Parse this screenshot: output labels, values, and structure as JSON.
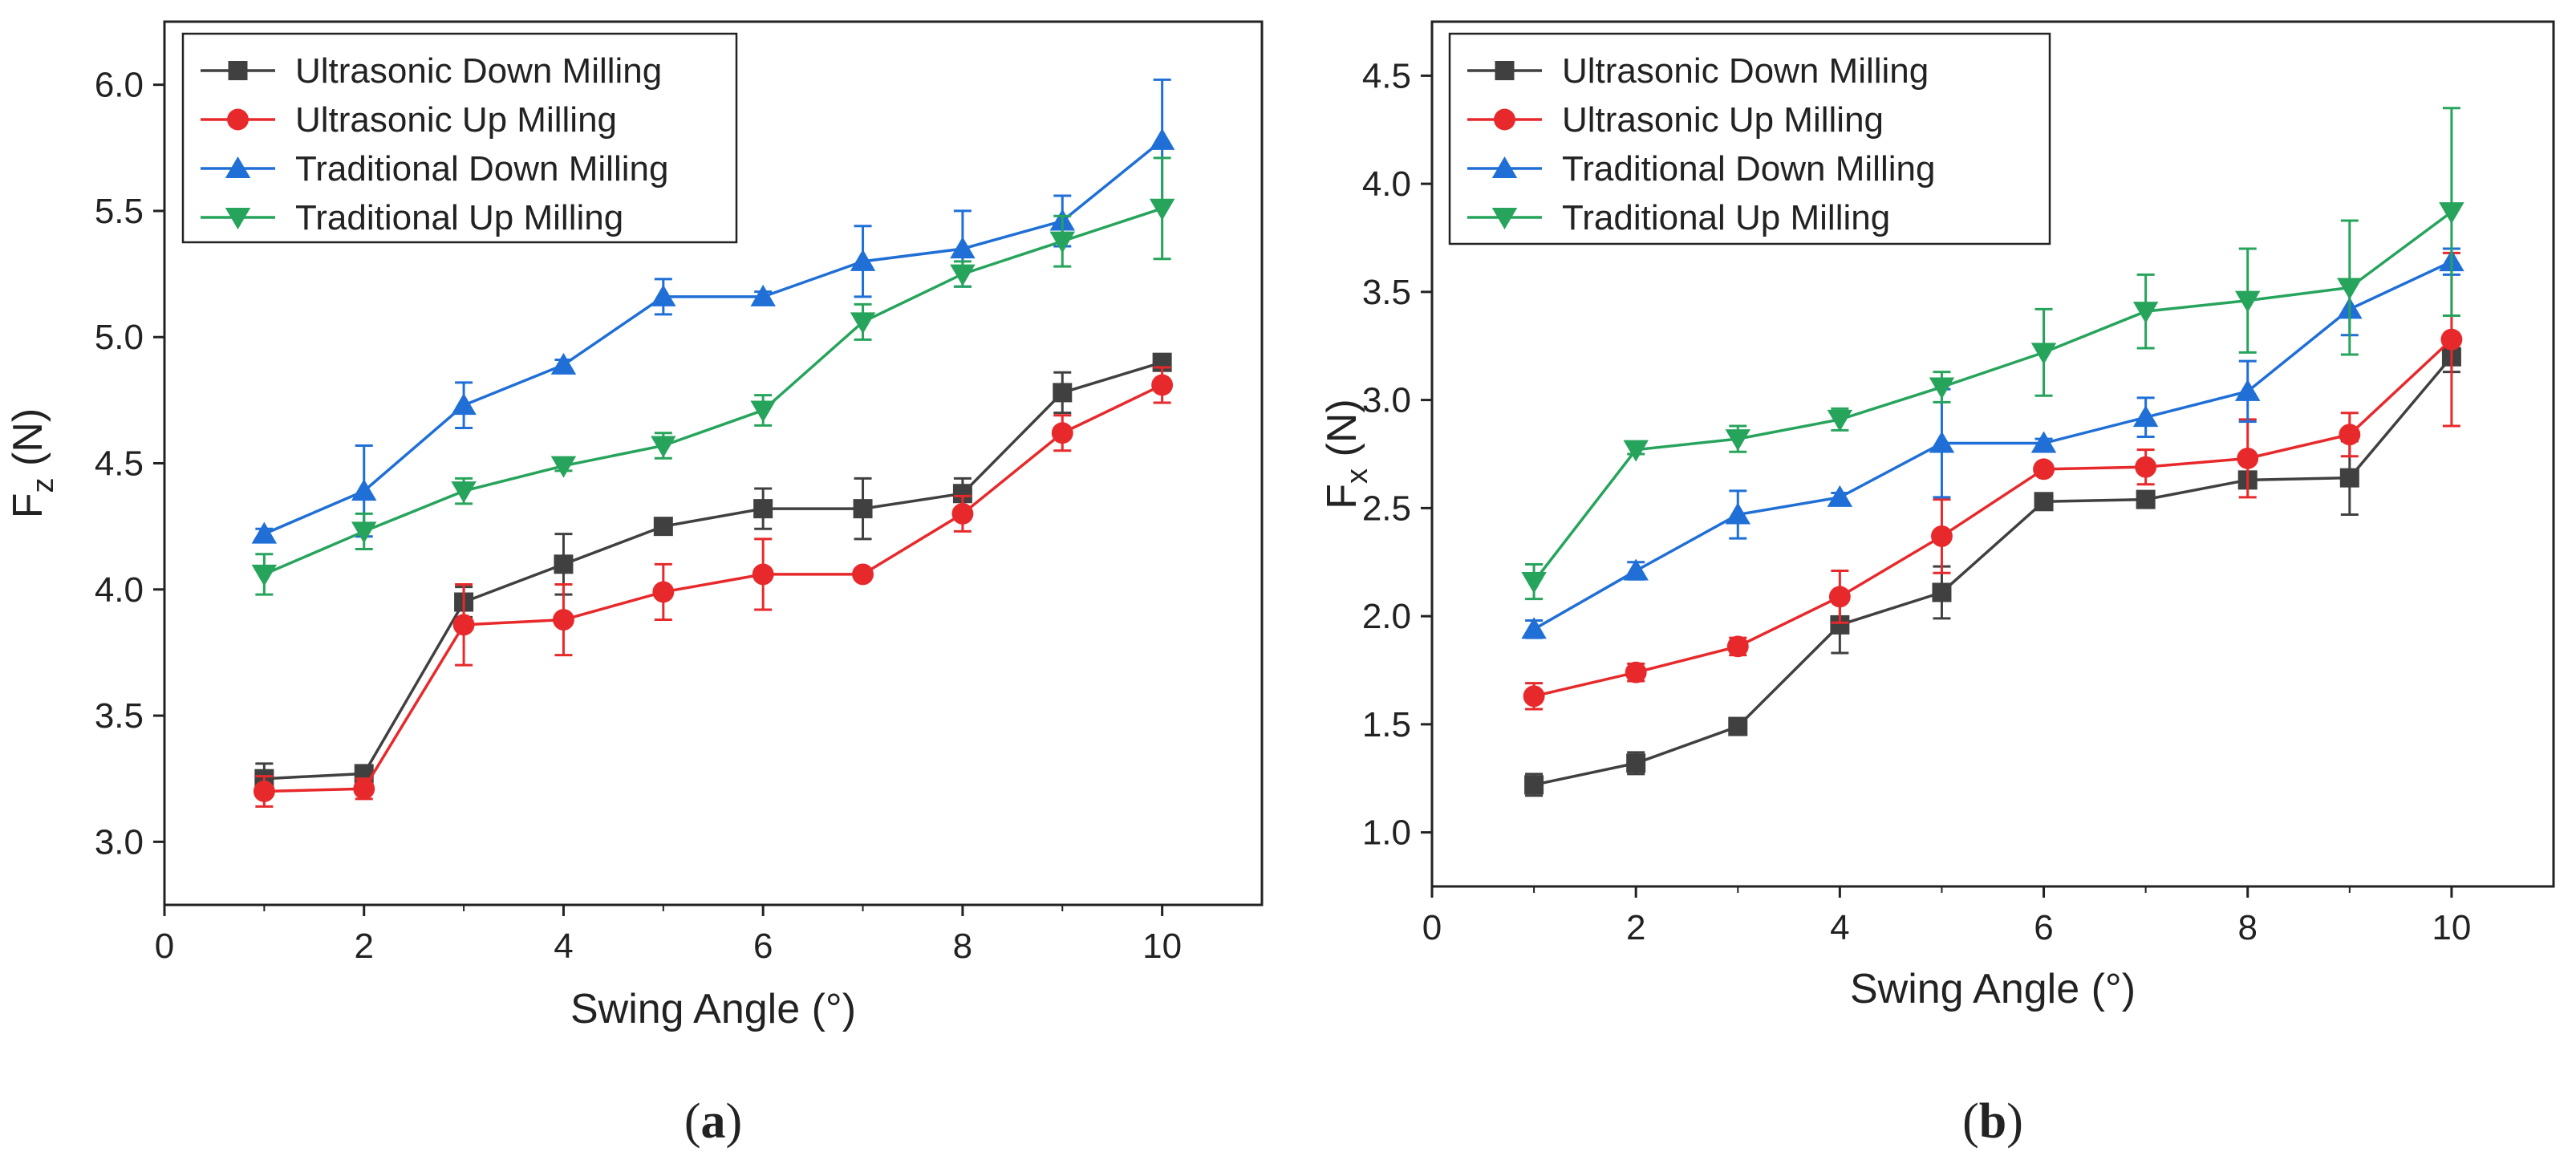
{
  "chart_data": [
    {
      "type": "line",
      "panel_label": "(a)",
      "panel_label_letter": "a",
      "xlabel": "Swing Angle (°)",
      "ylabel_main": "F",
      "ylabel_sub": "z",
      "ylabel_unit": "(N)",
      "xlim": [
        0,
        11
      ],
      "ylim": [
        2.75,
        6.25
      ],
      "xticks": [
        0,
        2,
        4,
        6,
        8,
        10
      ],
      "yticks": [
        3.0,
        3.5,
        4.0,
        4.5,
        5.0,
        5.5,
        6.0
      ],
      "grid": false,
      "legend_position": "top-left",
      "x": [
        1,
        2,
        3,
        4,
        5,
        6,
        7,
        8,
        9,
        10
      ],
      "series": [
        {
          "name": "Ultrasonic Down Milling",
          "color": "#404040",
          "marker": "square",
          "values": [
            3.25,
            3.27,
            3.95,
            4.1,
            4.25,
            4.32,
            4.32,
            4.38,
            4.78,
            4.9
          ],
          "errors": [
            0.06,
            0.02,
            0.06,
            0.12,
            0.02,
            0.08,
            0.12,
            0.06,
            0.08,
            0.02
          ]
        },
        {
          "name": "Ultrasonic Up Milling",
          "color": "#e8292b",
          "marker": "circle",
          "values": [
            3.2,
            3.21,
            3.86,
            3.88,
            3.99,
            4.06,
            4.06,
            4.3,
            4.62,
            4.81
          ],
          "errors": [
            0.06,
            0.04,
            0.16,
            0.14,
            0.11,
            0.14,
            0.02,
            0.07,
            0.07,
            0.07
          ]
        },
        {
          "name": "Traditional Down Milling",
          "color": "#1f6fd6",
          "marker": "triangle-up",
          "values": [
            4.22,
            4.39,
            4.73,
            4.89,
            5.16,
            5.16,
            5.3,
            5.35,
            5.46,
            5.78
          ],
          "errors": [
            0.02,
            0.18,
            0.09,
            0.02,
            0.07,
            0.02,
            0.14,
            0.15,
            0.1,
            0.24
          ]
        },
        {
          "name": "Traditional Up Milling",
          "color": "#27a45c",
          "marker": "triangle-down",
          "values": [
            4.06,
            4.23,
            4.39,
            4.49,
            4.57,
            4.71,
            5.06,
            5.25,
            5.38,
            5.51
          ],
          "errors": [
            0.08,
            0.07,
            0.05,
            0.02,
            0.05,
            0.06,
            0.07,
            0.05,
            0.1,
            0.2
          ]
        }
      ]
    },
    {
      "type": "line",
      "panel_label": "(b)",
      "panel_label_letter": "b",
      "xlabel": "Swing Angle (°)",
      "ylabel_main": "F",
      "ylabel_sub": "x",
      "ylabel_unit": "(N)",
      "xlim": [
        0,
        11
      ],
      "ylim": [
        0.75,
        4.75
      ],
      "xticks": [
        0,
        2,
        4,
        6,
        8,
        10
      ],
      "yticks": [
        1.0,
        1.5,
        2.0,
        2.5,
        3.0,
        3.5,
        4.0,
        4.5
      ],
      "grid": false,
      "legend_position": "top-left",
      "x": [
        1,
        2,
        3,
        4,
        5,
        6,
        7,
        8,
        9,
        10
      ],
      "series": [
        {
          "name": "Ultrasonic Down Milling",
          "color": "#404040",
          "marker": "square",
          "values": [
            1.22,
            1.32,
            1.49,
            1.96,
            2.11,
            2.53,
            2.54,
            2.63,
            2.64,
            3.2
          ],
          "errors": [
            0.05,
            0.05,
            0.02,
            0.13,
            0.12,
            0.02,
            0.02,
            0.02,
            0.17,
            0.07
          ]
        },
        {
          "name": "Ultrasonic Up Milling",
          "color": "#e8292b",
          "marker": "circle",
          "values": [
            1.63,
            1.74,
            1.86,
            2.09,
            2.37,
            2.68,
            2.69,
            2.73,
            2.84,
            3.28
          ],
          "errors": [
            0.06,
            0.04,
            0.04,
            0.12,
            0.17,
            0.02,
            0.08,
            0.18,
            0.1,
            0.4
          ]
        },
        {
          "name": "Traditional Down Milling",
          "color": "#1f6fd6",
          "marker": "triangle-up",
          "values": [
            1.94,
            2.21,
            2.47,
            2.55,
            2.8,
            2.8,
            2.92,
            3.04,
            3.42,
            3.64
          ],
          "errors": [
            0.04,
            0.04,
            0.11,
            0.02,
            0.25,
            0.02,
            0.09,
            0.14,
            0.12,
            0.06
          ]
        },
        {
          "name": "Traditional Up Milling",
          "color": "#27a45c",
          "marker": "triangle-down",
          "values": [
            2.16,
            2.77,
            2.82,
            2.91,
            3.06,
            3.22,
            3.41,
            3.46,
            3.52,
            3.87
          ],
          "errors": [
            0.08,
            0.02,
            0.06,
            0.05,
            0.07,
            0.2,
            0.17,
            0.24,
            0.31,
            0.48
          ]
        }
      ]
    }
  ]
}
